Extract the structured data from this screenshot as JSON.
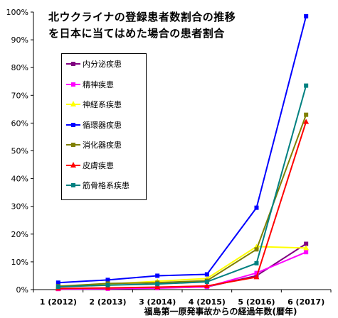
{
  "chart_data": {
    "type": "line",
    "title_lines": [
      "北ウクライナの登録患者数割合の推移",
      "を日本に当てはめた場合の患者割合"
    ],
    "xlabel": "福島第一原発事故からの経過年数(暦年)",
    "ylabel": "",
    "categories": [
      "1 (2012)",
      "2 (2013)",
      "3 (2014)",
      "4 (2015)",
      "5 (2016)",
      "6 (2017)"
    ],
    "ylim": [
      0,
      100
    ],
    "yticks": [
      "0%",
      "10%",
      "20%",
      "30%",
      "40%",
      "50%",
      "60%",
      "70%",
      "80%",
      "90%",
      "100%"
    ],
    "grid": false,
    "legend_position": "upper-left",
    "series": [
      {
        "name": "内分泌疾患",
        "color": "#800080",
        "marker": "square",
        "values": [
          0.3,
          0.4,
          0.6,
          1.0,
          5.0,
          16.5
        ]
      },
      {
        "name": "精神疾患",
        "color": "#ff00ff",
        "marker": "square",
        "values": [
          0.2,
          0.3,
          0.5,
          1.0,
          6.0,
          13.5
        ]
      },
      {
        "name": "神経系疾患",
        "color": "#ffff00",
        "marker": "triangle",
        "values": [
          1.0,
          2.0,
          3.0,
          4.0,
          15.5,
          15.0
        ]
      },
      {
        "name": "循環器疾患",
        "color": "#0000ff",
        "marker": "square",
        "values": [
          2.5,
          3.5,
          5.0,
          5.5,
          29.5,
          98.5
        ]
      },
      {
        "name": "消化器疾患",
        "color": "#808000",
        "marker": "square",
        "values": [
          1.2,
          2.2,
          2.5,
          3.2,
          14.5,
          63.0
        ]
      },
      {
        "name": "皮膚疾患",
        "color": "#ff0000",
        "marker": "triangle",
        "values": [
          0.4,
          0.6,
          0.9,
          1.3,
          4.5,
          60.5
        ]
      },
      {
        "name": "筋骨格系疾患",
        "color": "#008080",
        "marker": "square",
        "values": [
          1.0,
          1.6,
          2.0,
          2.8,
          9.5,
          73.5
        ]
      }
    ]
  }
}
